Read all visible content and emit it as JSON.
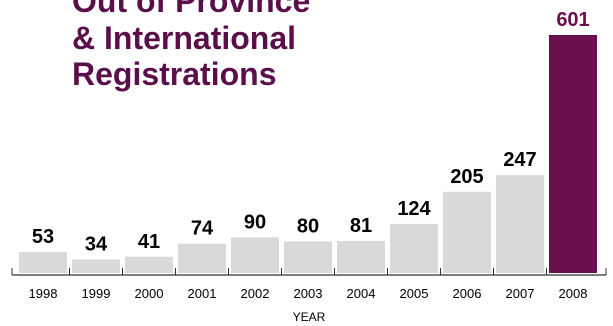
{
  "chart_data": {
    "type": "bar",
    "title_lines": [
      "Out of Province",
      "& International",
      "Registrations"
    ],
    "xlabel": "YEAR",
    "ylabel": "",
    "categories": [
      "1998",
      "1999",
      "2000",
      "2001",
      "2002",
      "2003",
      "2004",
      "2005",
      "2006",
      "2007",
      "2008"
    ],
    "values": [
      53,
      34,
      41,
      74,
      90,
      80,
      81,
      124,
      205,
      247,
      601
    ],
    "data_labels": [
      "53",
      "34",
      "41",
      "74",
      "90",
      "80",
      "81",
      "124",
      "205",
      "247",
      "601"
    ],
    "highlight_index": 10,
    "ylim": [
      0,
      601
    ],
    "grid": false,
    "legend": "none",
    "colors": {
      "bar": "#d9d9d9",
      "highlight": "#6b0f4f",
      "title": "#5a0f4a",
      "label": "#000000",
      "highlight_label": "#6b0f4f",
      "axis": "#333333"
    }
  }
}
